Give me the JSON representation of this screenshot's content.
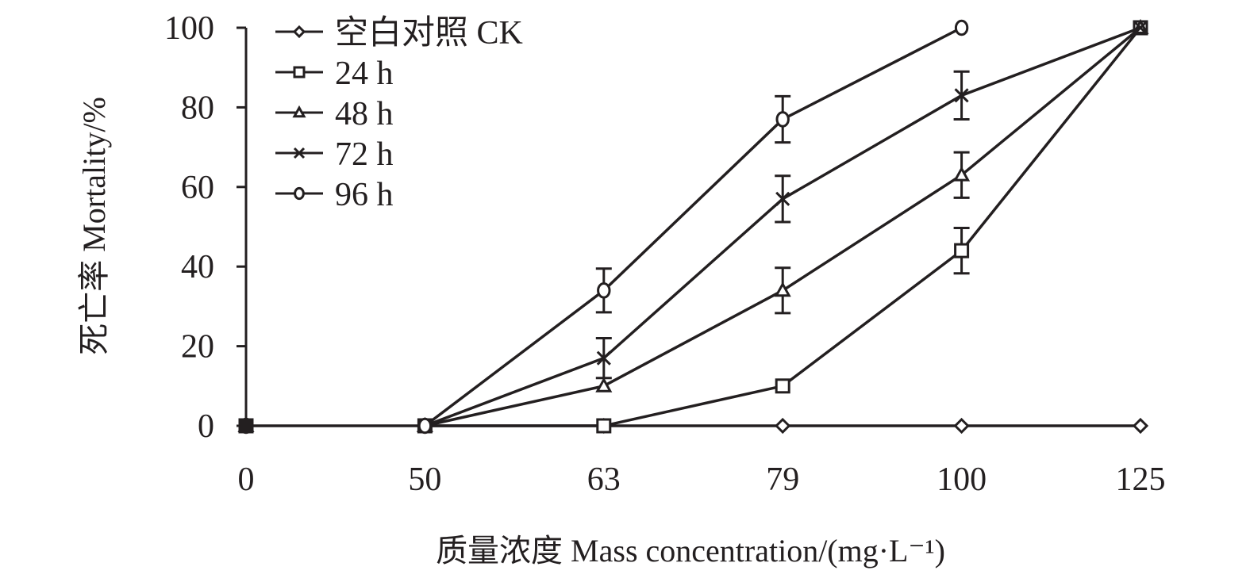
{
  "chart_data": {
    "type": "line",
    "xlabel": "质量浓度 Mass concentration/(mg·L⁻¹)",
    "ylabel": "死亡率 Mortality/%",
    "categories": [
      "0",
      "50",
      "63",
      "79",
      "100",
      "125"
    ],
    "yticks": [
      "0",
      "20",
      "40",
      "60",
      "80",
      "100"
    ],
    "ylim": [
      0,
      100
    ],
    "grid": false,
    "legend_position": "top-left",
    "color": "#231f20",
    "series": [
      {
        "name": "空白对照 CK",
        "marker": "diamond",
        "values": [
          0,
          0,
          0,
          0,
          0,
          0
        ],
        "err": [
          0,
          0,
          0,
          0,
          0,
          0
        ]
      },
      {
        "name": "24 h",
        "marker": "square",
        "values": [
          0,
          0,
          0,
          10,
          44,
          100
        ],
        "err": [
          0,
          0,
          0,
          0,
          5.7,
          0
        ]
      },
      {
        "name": "48 h",
        "marker": "triangle",
        "values": [
          0,
          0,
          10,
          34,
          63,
          100
        ],
        "err": [
          0,
          0,
          0,
          5.7,
          5.7,
          0
        ]
      },
      {
        "name": "72 h",
        "marker": "x",
        "values": [
          0,
          0,
          17,
          57,
          83,
          100
        ],
        "err": [
          0,
          0,
          5,
          5.8,
          6,
          0
        ]
      },
      {
        "name": "96 h",
        "marker": "circle",
        "values": [
          0,
          0,
          34,
          77,
          100,
          null
        ],
        "err": [
          0,
          0,
          5.5,
          5.8,
          0,
          0
        ]
      }
    ]
  }
}
